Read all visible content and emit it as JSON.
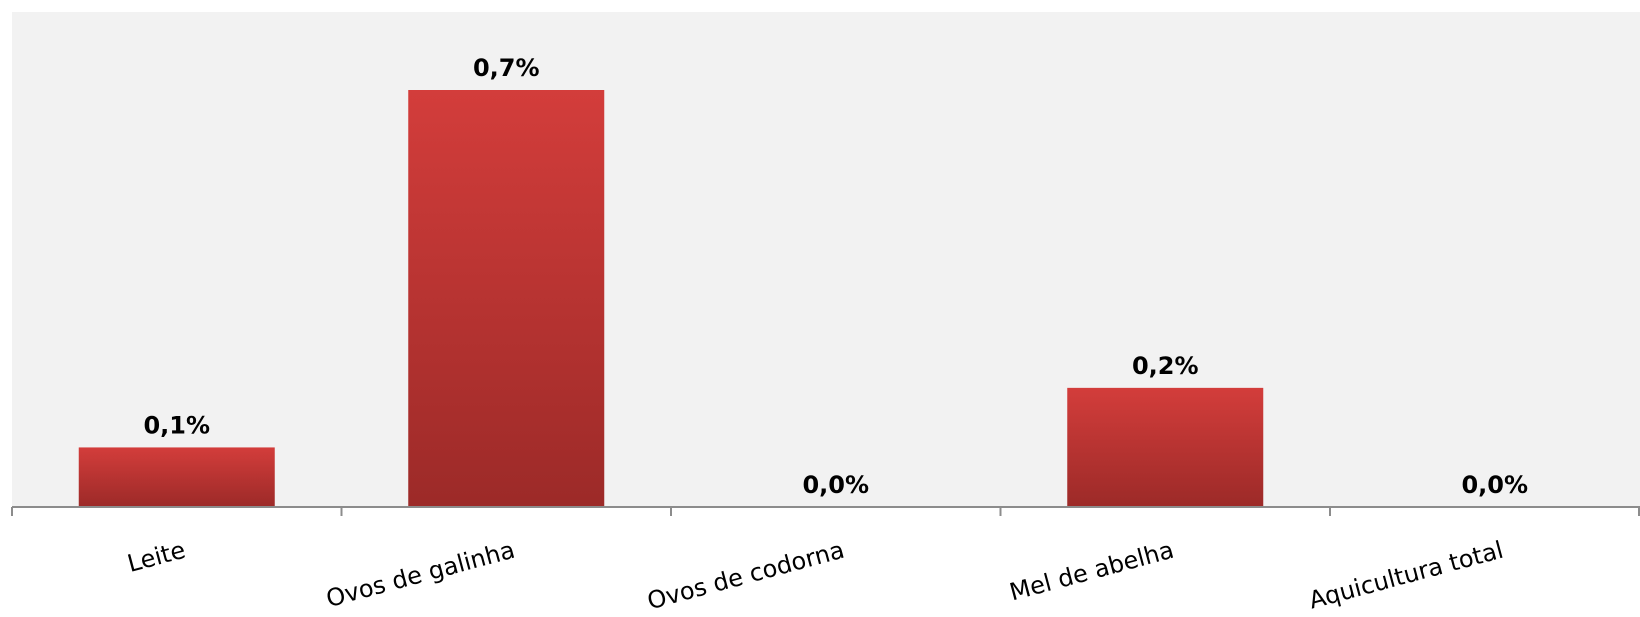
{
  "chart_data": {
    "type": "bar",
    "categories": [
      "Leite",
      "Ovos de galinha",
      "Ovos de codorna",
      "Mel de abelha",
      "Aquicultura total"
    ],
    "values": [
      0.1,
      0.7,
      0.0,
      0.2,
      0.0
    ],
    "data_labels": [
      "0,1%",
      "0,7%",
      "0,0%",
      "0,2%",
      "0,0%"
    ],
    "title": "",
    "xlabel": "",
    "ylabel": "",
    "ylim": [
      0,
      0.8
    ],
    "grid": false,
    "legend": "none",
    "colors": {
      "plot_background": "#f2f2f2",
      "bar_top": "#d33d3b",
      "bar_bottom": "#9c2a28",
      "axis": "#8c8c8c"
    }
  }
}
